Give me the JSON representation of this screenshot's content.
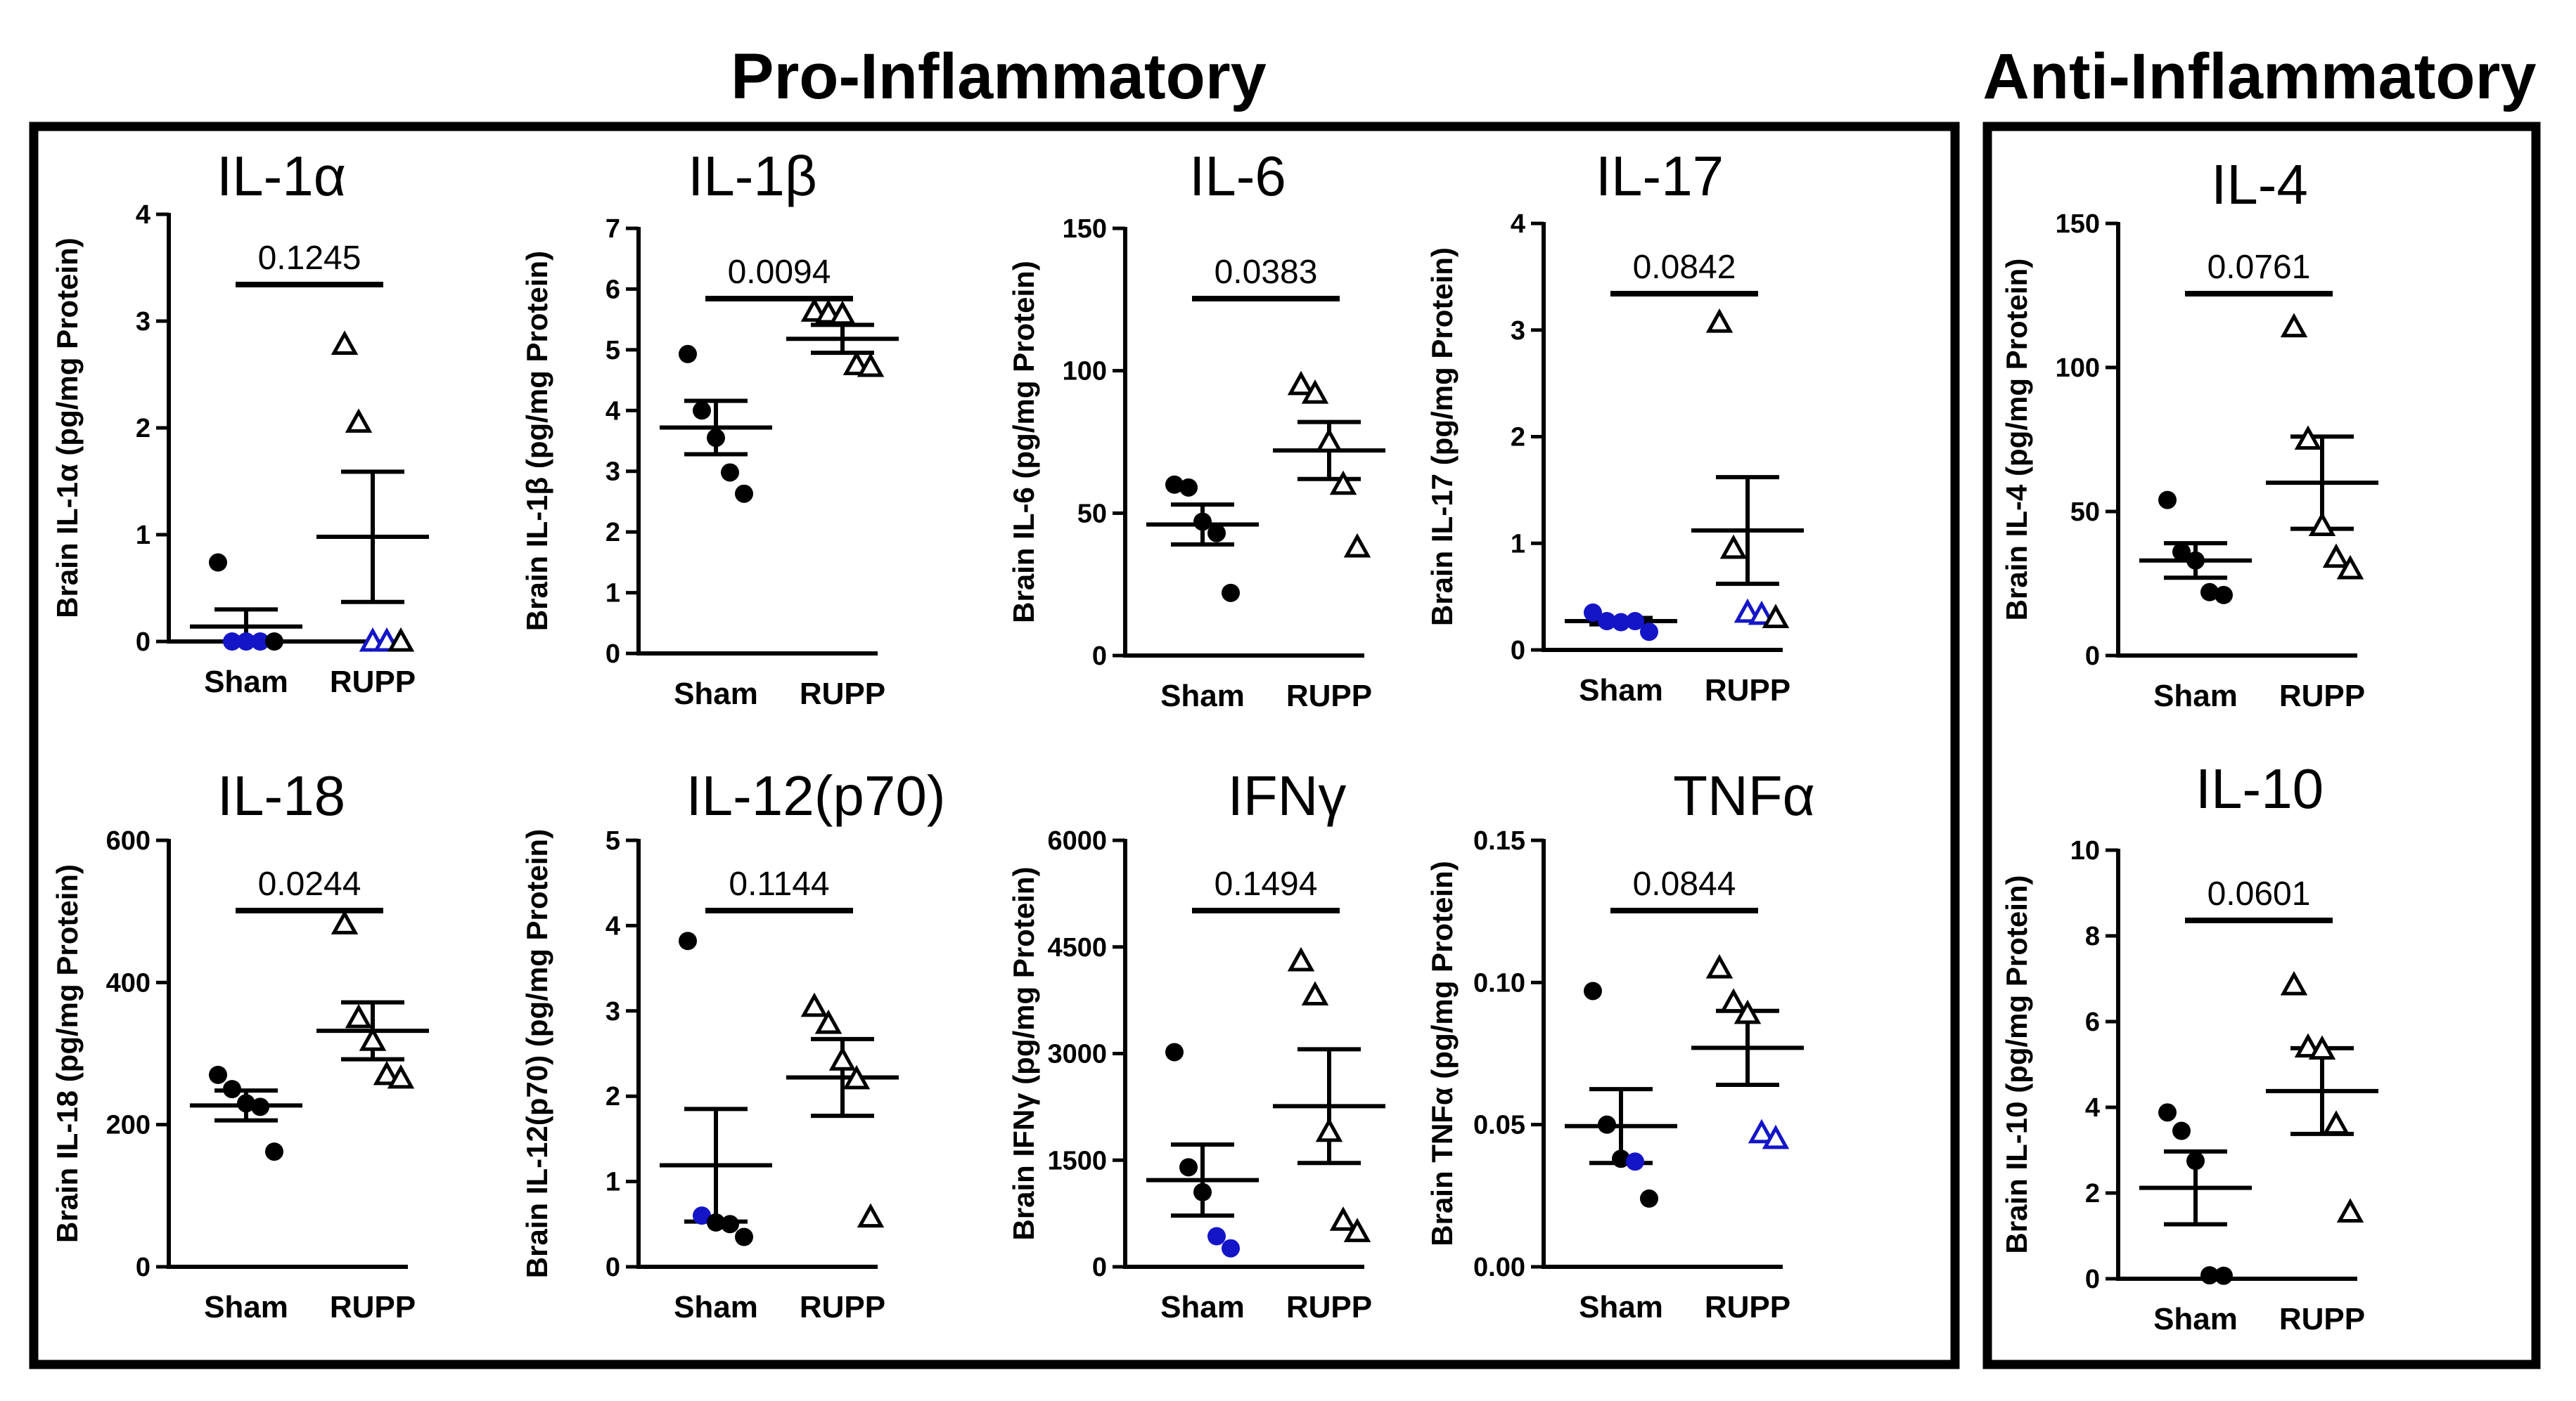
{
  "sections": [
    {
      "title": "Pro-Inflammatory"
    },
    {
      "title": "Anti-Inflammatory"
    }
  ],
  "chart_data": [
    {
      "id": "il1a",
      "type": "scatter",
      "title": "IL-1α",
      "ylabel": "Brain IL-1α (pg/mg Protein)",
      "ylim": [
        0,
        4
      ],
      "yticks": [
        "0",
        "1",
        "2",
        "3",
        "4"
      ],
      "categories": [
        "Sham",
        "RUPP"
      ],
      "pvalue": "0.1245",
      "groups": [
        {
          "name": "Sham",
          "mean": 0.14,
          "sem_low": 0.0,
          "sem_high": 0.3,
          "points": [
            {
              "y": 0.74,
              "color": "#000000"
            },
            {
              "y": 0.0,
              "color": "#1515c8"
            },
            {
              "y": 0.0,
              "color": "#1515c8"
            },
            {
              "y": 0.0,
              "color": "#1515c8"
            },
            {
              "y": 0.0,
              "color": "#000000"
            }
          ]
        },
        {
          "name": "RUPP",
          "mean": 0.98,
          "sem_low": 0.37,
          "sem_high": 1.59,
          "points": [
            {
              "y": 2.78,
              "color": "#000000"
            },
            {
              "y": 2.05,
              "color": "#000000"
            },
            {
              "y": 0.0,
              "color": "#1515c8"
            },
            {
              "y": 0.0,
              "color": "#1515c8"
            },
            {
              "y": 0.0,
              "color": "#000000"
            }
          ]
        }
      ]
    },
    {
      "id": "il1b",
      "type": "scatter",
      "title": "IL-1β",
      "ylabel": "Brain IL-1β (pg/mg Protein)",
      "ylim": [
        0,
        7
      ],
      "yticks": [
        "0",
        "1",
        "2",
        "3",
        "4",
        "5",
        "6",
        "7"
      ],
      "categories": [
        "Sham",
        "RUPP"
      ],
      "pvalue": "0.0094",
      "groups": [
        {
          "name": "Sham",
          "mean": 3.72,
          "sem_low": 3.28,
          "sem_high": 4.16,
          "points": [
            {
              "y": 4.93,
              "color": "#000000"
            },
            {
              "y": 4.0,
              "color": "#000000"
            },
            {
              "y": 3.55,
              "color": "#000000"
            },
            {
              "y": 2.98,
              "color": "#000000"
            },
            {
              "y": 2.63,
              "color": "#000000"
            }
          ]
        },
        {
          "name": "RUPP",
          "mean": 5.18,
          "sem_low": 4.95,
          "sem_high": 5.41,
          "points": [
            {
              "y": 5.63,
              "color": "#000000"
            },
            {
              "y": 5.6,
              "color": "#000000"
            },
            {
              "y": 5.58,
              "color": "#000000"
            },
            {
              "y": 4.75,
              "color": "#000000"
            },
            {
              "y": 4.72,
              "color": "#000000"
            }
          ]
        }
      ]
    },
    {
      "id": "il6",
      "type": "scatter",
      "title": "IL-6",
      "ylabel": "Brain IL-6 (pg/mg Protein)",
      "ylim": [
        0,
        150
      ],
      "yticks": [
        "0",
        "50",
        "100",
        "150"
      ],
      "categories": [
        "Sham",
        "RUPP"
      ],
      "pvalue": "0.0383",
      "groups": [
        {
          "name": "Sham",
          "mean": 46,
          "sem_low": 39,
          "sem_high": 53,
          "points": [
            {
              "y": 60,
              "color": "#000000"
            },
            {
              "y": 59,
              "color": "#000000"
            },
            {
              "y": 47,
              "color": "#000000"
            },
            {
              "y": 43,
              "color": "#000000"
            },
            {
              "y": 22,
              "color": "#000000"
            }
          ]
        },
        {
          "name": "RUPP",
          "mean": 72,
          "sem_low": 62,
          "sem_high": 82,
          "points": [
            {
              "y": 95,
              "color": "#000000"
            },
            {
              "y": 92,
              "color": "#000000"
            },
            {
              "y": 75,
              "color": "#000000"
            },
            {
              "y": 60,
              "color": "#000000"
            },
            {
              "y": 38,
              "color": "#000000"
            }
          ]
        }
      ]
    },
    {
      "id": "il17",
      "type": "scatter",
      "title": "IL-17",
      "ylabel": "Brain IL-17 (pg/mg Protein)",
      "ylim": [
        0,
        4
      ],
      "yticks": [
        "0",
        "1",
        "2",
        "3",
        "4"
      ],
      "categories": [
        "Sham",
        "RUPP"
      ],
      "pvalue": "0.0842",
      "groups": [
        {
          "name": "Sham",
          "mean": 0.27,
          "sem_low": 0.24,
          "sem_high": 0.3,
          "points": [
            {
              "y": 0.35,
              "color": "#1515c8"
            },
            {
              "y": 0.27,
              "color": "#1515c8"
            },
            {
              "y": 0.26,
              "color": "#1515c8"
            },
            {
              "y": 0.27,
              "color": "#1515c8"
            },
            {
              "y": 0.17,
              "color": "#1515c8"
            }
          ]
        },
        {
          "name": "RUPP",
          "mean": 1.12,
          "sem_low": 0.62,
          "sem_high": 1.62,
          "points": [
            {
              "y": 3.07,
              "color": "#000000"
            },
            {
              "y": 0.95,
              "color": "#000000"
            },
            {
              "y": 0.35,
              "color": "#1515c8"
            },
            {
              "y": 0.33,
              "color": "#1515c8"
            },
            {
              "y": 0.3,
              "color": "#000000"
            }
          ]
        }
      ]
    },
    {
      "id": "il18",
      "type": "scatter",
      "title": "IL-18",
      "ylabel": "Brain IL-18 (pg/mg Protein)",
      "ylim": [
        0,
        600
      ],
      "yticks": [
        "0",
        "200",
        "400",
        "600"
      ],
      "categories": [
        "Sham",
        "RUPP"
      ],
      "pvalue": "0.0244",
      "groups": [
        {
          "name": "Sham",
          "mean": 227,
          "sem_low": 206,
          "sem_high": 248,
          "points": [
            {
              "y": 270,
              "color": "#000000"
            },
            {
              "y": 250,
              "color": "#000000"
            },
            {
              "y": 230,
              "color": "#000000"
            },
            {
              "y": 225,
              "color": "#000000"
            },
            {
              "y": 162,
              "color": "#000000"
            }
          ]
        },
        {
          "name": "RUPP",
          "mean": 332,
          "sem_low": 292,
          "sem_high": 372,
          "points": [
            {
              "y": 482,
              "color": "#000000"
            },
            {
              "y": 350,
              "color": "#000000"
            },
            {
              "y": 318,
              "color": "#000000"
            },
            {
              "y": 270,
              "color": "#000000"
            },
            {
              "y": 265,
              "color": "#000000"
            }
          ]
        }
      ]
    },
    {
      "id": "il12",
      "type": "scatter",
      "title": "IL-12(p70)",
      "ylabel": "Brain IL-12(p70) (pg/mg Protein)",
      "ylim": [
        0,
        5
      ],
      "yticks": [
        "0",
        "1",
        "2",
        "3",
        "4",
        "5"
      ],
      "categories": [
        "Sham",
        "RUPP"
      ],
      "pvalue": "0.1144",
      "groups": [
        {
          "name": "Sham",
          "mean": 1.19,
          "sem_low": 0.53,
          "sem_high": 1.85,
          "points": [
            {
              "y": 3.82,
              "color": "#000000"
            },
            {
              "y": 0.6,
              "color": "#1515c8"
            },
            {
              "y": 0.52,
              "color": "#000000"
            },
            {
              "y": 0.5,
              "color": "#000000"
            },
            {
              "y": 0.35,
              "color": "#000000"
            }
          ]
        },
        {
          "name": "RUPP",
          "mean": 2.22,
          "sem_low": 1.77,
          "sem_high": 2.67,
          "points": [
            {
              "y": 3.05,
              "color": "#000000"
            },
            {
              "y": 2.85,
              "color": "#000000"
            },
            {
              "y": 2.42,
              "color": "#000000"
            },
            {
              "y": 2.2,
              "color": "#000000"
            },
            {
              "y": 0.58,
              "color": "#000000"
            }
          ]
        }
      ]
    },
    {
      "id": "ifng",
      "type": "scatter",
      "title": "IFNγ",
      "ylabel": "Brain IFNγ (pg/mg Protein)",
      "ylim": [
        0,
        6000
      ],
      "yticks": [
        "0",
        "1500",
        "3000",
        "4500",
        "6000"
      ],
      "categories": [
        "Sham",
        "RUPP"
      ],
      "pvalue": "0.1494",
      "groups": [
        {
          "name": "Sham",
          "mean": 1220,
          "sem_low": 720,
          "sem_high": 1720,
          "points": [
            {
              "y": 3020,
              "color": "#000000"
            },
            {
              "y": 1400,
              "color": "#000000"
            },
            {
              "y": 1050,
              "color": "#000000"
            },
            {
              "y": 430,
              "color": "#1515c8"
            },
            {
              "y": 260,
              "color": "#1515c8"
            }
          ]
        },
        {
          "name": "RUPP",
          "mean": 2260,
          "sem_low": 1460,
          "sem_high": 3060,
          "points": [
            {
              "y": 4300,
              "color": "#000000"
            },
            {
              "y": 3820,
              "color": "#000000"
            },
            {
              "y": 1900,
              "color": "#000000"
            },
            {
              "y": 650,
              "color": "#000000"
            },
            {
              "y": 490,
              "color": "#000000"
            }
          ]
        }
      ]
    },
    {
      "id": "tnfa",
      "type": "scatter",
      "title": "TNFα",
      "ylabel": "Brain TNFα (pg/mg Protein)",
      "ylim": [
        0,
        0.15
      ],
      "yticks": [
        "0.00",
        "0.05",
        "0.10",
        "0.15"
      ],
      "categories": [
        "Sham",
        "RUPP"
      ],
      "pvalue": "0.0844",
      "groups": [
        {
          "name": "Sham",
          "mean": 0.0495,
          "sem_low": 0.0365,
          "sem_high": 0.0625,
          "points": [
            {
              "y": 0.097,
              "color": "#000000"
            },
            {
              "y": 0.05,
              "color": "#000000"
            },
            {
              "y": 0.038,
              "color": "#000000"
            },
            {
              "y": 0.037,
              "color": "#1515c8"
            },
            {
              "y": 0.024,
              "color": "#000000"
            }
          ]
        },
        {
          "name": "RUPP",
          "mean": 0.077,
          "sem_low": 0.064,
          "sem_high": 0.09,
          "points": [
            {
              "y": 0.105,
              "color": "#000000"
            },
            {
              "y": 0.093,
              "color": "#000000"
            },
            {
              "y": 0.089,
              "color": "#000000"
            },
            {
              "y": 0.047,
              "color": "#1515c8"
            },
            {
              "y": 0.045,
              "color": "#1515c8"
            }
          ]
        }
      ]
    },
    {
      "id": "il4",
      "type": "scatter",
      "title": "IL-4",
      "ylabel": "Brain IL-4 (pg/mg Protein)",
      "ylim": [
        0,
        150
      ],
      "yticks": [
        "0",
        "50",
        "100",
        "150"
      ],
      "categories": [
        "Sham",
        "RUPP"
      ],
      "pvalue": "0.0761",
      "groups": [
        {
          "name": "Sham",
          "mean": 33,
          "sem_low": 27,
          "sem_high": 39,
          "points": [
            {
              "y": 54,
              "color": "#000000"
            },
            {
              "y": 36,
              "color": "#000000"
            },
            {
              "y": 33,
              "color": "#000000"
            },
            {
              "y": 22,
              "color": "#000000"
            },
            {
              "y": 21,
              "color": "#000000"
            }
          ]
        },
        {
          "name": "RUPP",
          "mean": 60,
          "sem_low": 44,
          "sem_high": 76,
          "points": [
            {
              "y": 114,
              "color": "#000000"
            },
            {
              "y": 75,
              "color": "#000000"
            },
            {
              "y": 45,
              "color": "#000000"
            },
            {
              "y": 34,
              "color": "#000000"
            },
            {
              "y": 30,
              "color": "#000000"
            }
          ]
        }
      ]
    },
    {
      "id": "il10",
      "type": "scatter",
      "title": "IL-10",
      "ylabel": "Brain IL-10 (pg/mg Protein)",
      "ylim": [
        0,
        10
      ],
      "yticks": [
        "0",
        "2",
        "4",
        "6",
        "8",
        "10"
      ],
      "categories": [
        "Sham",
        "RUPP"
      ],
      "pvalue": "0.0601",
      "groups": [
        {
          "name": "Sham",
          "mean": 2.12,
          "sem_low": 1.27,
          "sem_high": 2.97,
          "points": [
            {
              "y": 3.88,
              "color": "#000000"
            },
            {
              "y": 3.45,
              "color": "#000000"
            },
            {
              "y": 2.75,
              "color": "#000000"
            },
            {
              "y": 0.08,
              "color": "#000000"
            },
            {
              "y": 0.07,
              "color": "#000000"
            }
          ]
        },
        {
          "name": "RUPP",
          "mean": 4.38,
          "sem_low": 3.38,
          "sem_high": 5.38,
          "points": [
            {
              "y": 6.85,
              "color": "#000000"
            },
            {
              "y": 5.4,
              "color": "#000000"
            },
            {
              "y": 5.35,
              "color": "#000000"
            },
            {
              "y": 3.6,
              "color": "#000000"
            },
            {
              "y": 1.55,
              "color": "#000000"
            }
          ]
        }
      ]
    }
  ]
}
